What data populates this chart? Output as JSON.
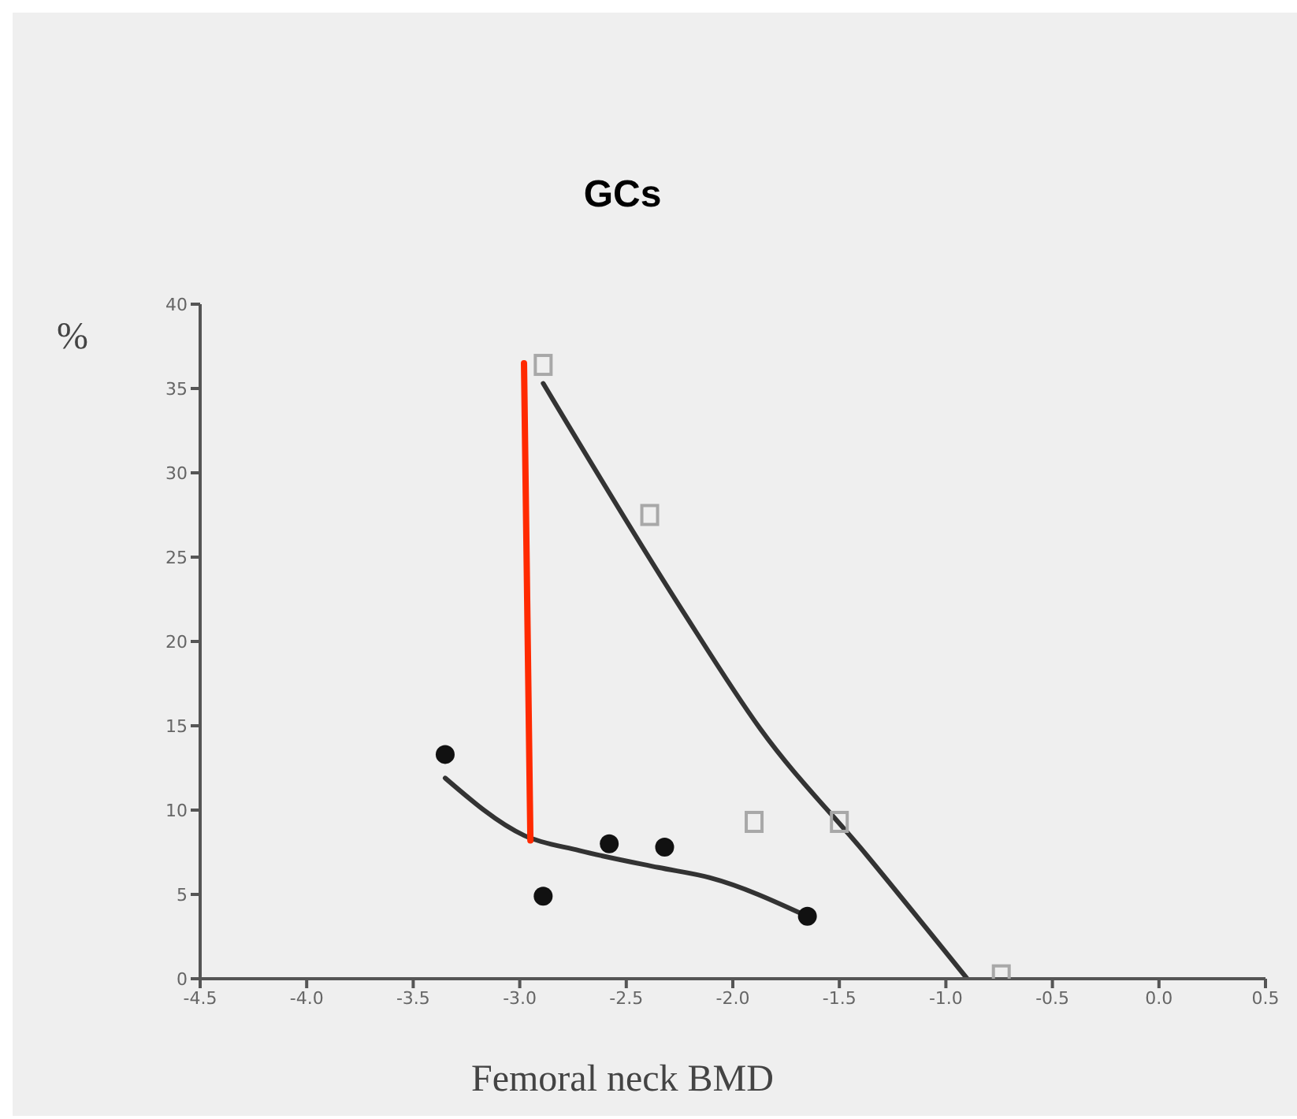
{
  "chart_data": {
    "type": "scatter",
    "title": "GCs",
    "xlabel": "Femoral neck BMD",
    "ylabel": "%",
    "xlim": [
      -4.5,
      0.5
    ],
    "xticks": [
      {
        "value": -4.5,
        "label": "-4.5"
      },
      {
        "value": -4,
        "label": "-4.0"
      },
      {
        "value": -3.5,
        "label": "-3.5"
      },
      {
        "value": -3,
        "label": "-3.0"
      },
      {
        "value": -2.5,
        "label": "-2.5"
      },
      {
        "value": -2,
        "label": "-2.0"
      },
      {
        "value": -1.5,
        "label": "-1.5"
      },
      {
        "value": -1,
        "label": "-1.0"
      },
      {
        "value": -0.5,
        "label": "-0.5"
      },
      {
        "value": 0,
        "label": "0.0"
      },
      {
        "value": 0.5,
        "label": "0.5"
      }
    ],
    "ylim": [
      0,
      40
    ],
    "yticks": [
      0,
      5,
      10,
      15,
      20,
      25,
      30,
      35,
      40
    ],
    "series": [
      {
        "marker": "circle",
        "color": "#111111",
        "x": [
          -3.35,
          -2.89,
          -2.58,
          -2.32,
          -1.65
        ],
        "values": [
          13.3,
          4.9,
          8.0,
          7.8,
          3.7
        ]
      },
      {
        "marker": "square",
        "color": "#a8a8a8",
        "x": [
          -2.89,
          -2.39,
          -1.9,
          -1.5,
          -0.74
        ],
        "values": [
          36.4,
          27.5,
          9.3,
          9.3,
          0.2
        ]
      },
      {
        "type": "line",
        "marker": "none",
        "color": "#333333",
        "x": [
          -3.35,
          -2.98,
          -2.72,
          -2.35,
          -2.11,
          -1.65
        ],
        "values": [
          11.9,
          8.5,
          7.6,
          6.6,
          6.0,
          3.7
        ]
      },
      {
        "type": "line",
        "marker": "none",
        "color": "#333333",
        "x": [
          -2.89,
          -2.24,
          -1.87,
          -1.37,
          -0.9
        ],
        "values": [
          35.3,
          21.9,
          14.8,
          7.3,
          0
        ]
      },
      {
        "type": "line",
        "marker": "none",
        "color": "#ff2a00",
        "x": [
          -2.98,
          -2.95
        ],
        "values": [
          36.5,
          8.2
        ]
      }
    ]
  }
}
